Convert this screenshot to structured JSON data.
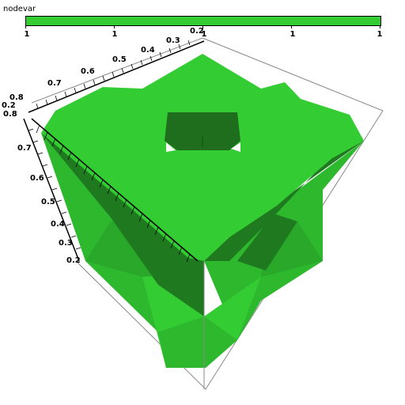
{
  "legend": {
    "title": "nodevar",
    "bar_color": "#33cc33",
    "tick_labels": [
      "1",
      "1",
      "1",
      "1",
      "1"
    ]
  },
  "axes": {
    "top_axis_labels": [
      "0.2",
      "0.3",
      "0.4",
      "0.5",
      "0.6",
      "0.7",
      "0.8"
    ],
    "left_axis_labels": [
      "0.8",
      "0.7",
      "0.6",
      "0.5",
      "0.4",
      "0.3",
      "0.2"
    ],
    "corner_labels": [
      "0.2",
      "0.8"
    ]
  },
  "colors": {
    "top_face": "#33cc33",
    "side_light": "#2eb82e",
    "side_mid": "#2aa82a",
    "side_dark": "#1f7a1f",
    "hole_dark": "#1e6e1e",
    "wire": "#888888"
  }
}
